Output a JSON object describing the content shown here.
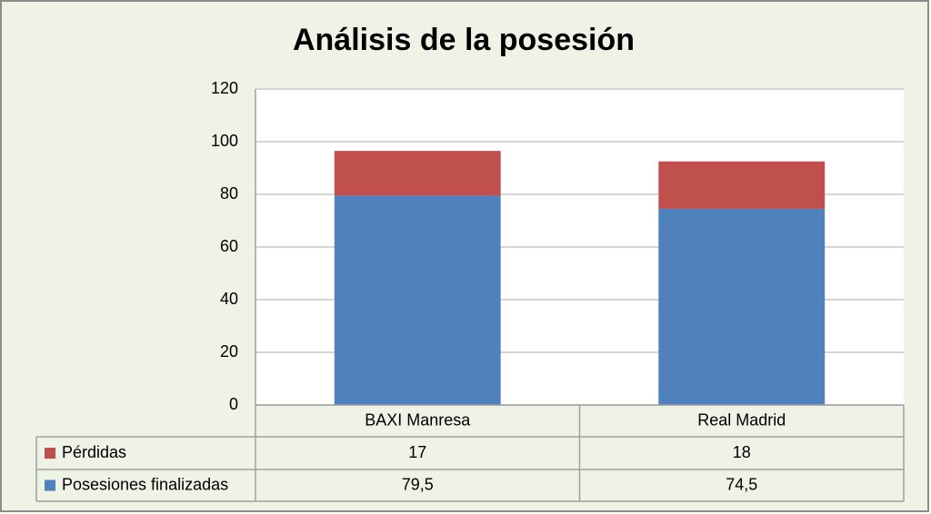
{
  "chart_data": {
    "type": "stacked_bar",
    "title": "Análisis de la posesión",
    "categories": [
      "BAXI Manresa",
      "Real Madrid"
    ],
    "series": [
      {
        "name": "Posesiones finalizadas",
        "color": "#4f81bd",
        "values": [
          79.5,
          74.5
        ],
        "value_labels": [
          "79,5",
          "74,5"
        ]
      },
      {
        "name": "Pérdidas",
        "color": "#c0504d",
        "values": [
          17,
          18
        ]
      }
    ],
    "ylim": [
      0,
      120
    ],
    "yticks": [
      0,
      20,
      40,
      60,
      80,
      100,
      120
    ],
    "grid": true,
    "legend": "data-table"
  }
}
